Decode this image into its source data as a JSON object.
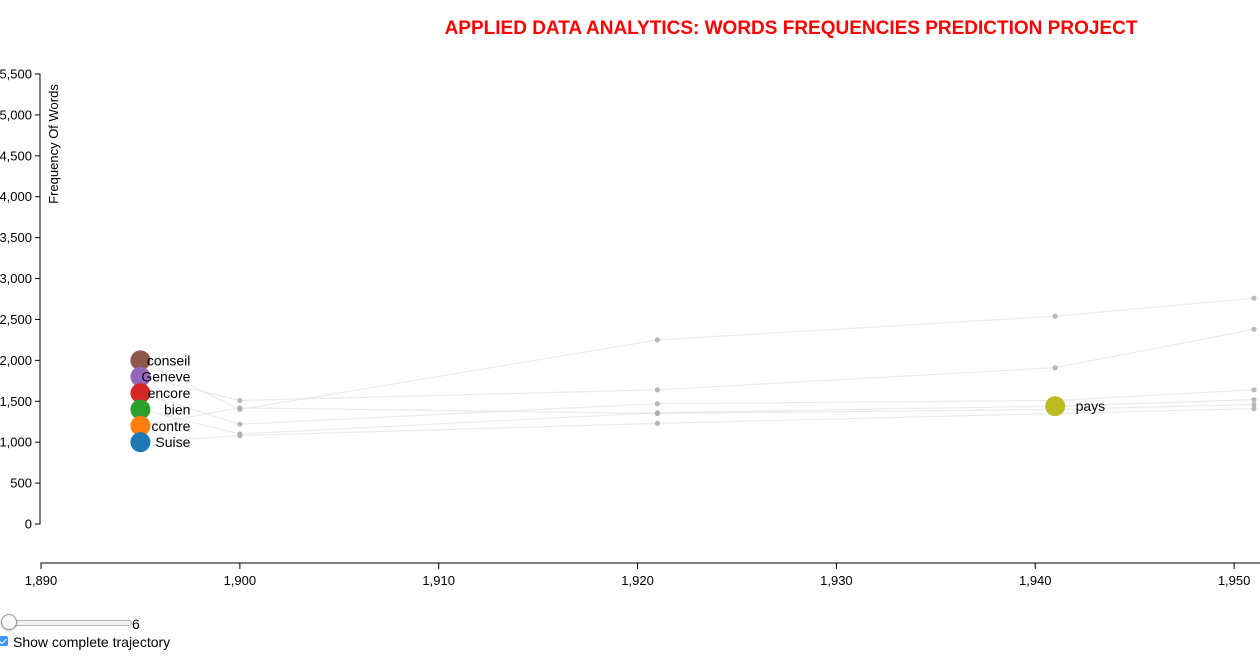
{
  "page": {
    "title": "APPLIED DATA ANALYTICS: WORDS FREQUENCIES PREDICTION PROJECT"
  },
  "chart_data": {
    "type": "scatter",
    "title": "APPLIED DATA ANALYTICS: WORDS FREQUENCIES PREDICTION PROJECT",
    "ylabel": "Frequency Of Words",
    "xlabel": "",
    "xlim": [
      1890,
      1951
    ],
    "ylim": [
      0,
      5500
    ],
    "x_ticks": [
      1890,
      1900,
      1910,
      1920,
      1930,
      1940,
      1950
    ],
    "x_tick_labels": [
      "1,890",
      "1,900",
      "1,910",
      "1,920",
      "1,930",
      "1,940",
      "1,950"
    ],
    "y_ticks": [
      0,
      500,
      1000,
      1500,
      2000,
      2500,
      3000,
      3500,
      4000,
      4500,
      5000,
      5500
    ],
    "y_tick_labels": [
      "0",
      "500",
      "1,000",
      "1,500",
      "2,000",
      "2,500",
      "3,000",
      "3,500",
      "4,000",
      "4,500",
      "5,000",
      "5,500"
    ],
    "grid": false,
    "series": [
      {
        "name": "conseil",
        "color": "#8c564b",
        "current": {
          "x": 1895,
          "y": 2000
        },
        "trail": [
          {
            "x": 1900,
            "y": 1400
          },
          {
            "x": 1921,
            "y": 2250
          },
          {
            "x": 1941,
            "y": 2540
          },
          {
            "x": 1951,
            "y": 2760
          }
        ]
      },
      {
        "name": "Geneve",
        "color": "#9467bd",
        "current": {
          "x": 1895,
          "y": 1800
        },
        "trail": [
          {
            "x": 1900,
            "y": 1510
          },
          {
            "x": 1921,
            "y": 1640
          },
          {
            "x": 1941,
            "y": 1910
          },
          {
            "x": 1951,
            "y": 2380
          }
        ]
      },
      {
        "name": "encore",
        "color": "#d62728",
        "current": {
          "x": 1895,
          "y": 1600
        },
        "trail": [
          {
            "x": 1900,
            "y": 1220
          },
          {
            "x": 1921,
            "y": 1470
          },
          {
            "x": 1941,
            "y": 1510
          },
          {
            "x": 1951,
            "y": 1640
          }
        ]
      },
      {
        "name": "bien",
        "color": "#2ca02c",
        "current": {
          "x": 1895,
          "y": 1400
        },
        "trail": [
          {
            "x": 1900,
            "y": 1100
          },
          {
            "x": 1921,
            "y": 1360
          },
          {
            "x": 1941,
            "y": 1440
          },
          {
            "x": 1951,
            "y": 1520
          }
        ]
      },
      {
        "name": "contre",
        "color": "#ff7f0e",
        "current": {
          "x": 1895,
          "y": 1200
        },
        "trail": [
          {
            "x": 1900,
            "y": 1420
          },
          {
            "x": 1921,
            "y": 1350
          },
          {
            "x": 1941,
            "y": 1400
          },
          {
            "x": 1951,
            "y": 1460
          }
        ]
      },
      {
        "name": "Suise",
        "color": "#1f77b4",
        "current": {
          "x": 1895,
          "y": 1000
        },
        "trail": [
          {
            "x": 1900,
            "y": 1080
          },
          {
            "x": 1921,
            "y": 1230
          },
          {
            "x": 1941,
            "y": 1350
          },
          {
            "x": 1951,
            "y": 1410
          }
        ]
      },
      {
        "name": "pays",
        "color": "#bcbd22",
        "current": {
          "x": 1941,
          "y": 1440
        },
        "trail": []
      }
    ]
  },
  "controls": {
    "slider_value": "6",
    "slider_fraction": 0,
    "trajectory_label": "Show complete trajectory",
    "trajectory_checked": true
  }
}
